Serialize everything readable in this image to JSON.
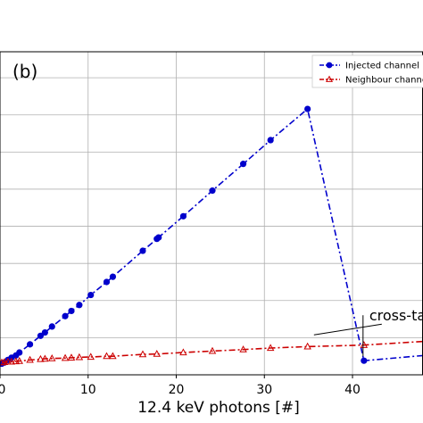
{
  "chart_data": {
    "type": "line",
    "panel_label": "(b)",
    "xlabel": "12.4 keV photons [#]",
    "ylabel": "",
    "xlim": [
      0,
      48
    ],
    "ylim": [
      0,
      8.7
    ],
    "x_ticks": [
      0,
      10,
      20,
      30,
      40
    ],
    "y_grid": [
      1,
      2,
      3,
      4,
      5,
      6,
      7,
      8
    ],
    "grid": true,
    "legend_position": "top-right",
    "series": [
      {
        "name": "Injected channel",
        "color": "#0000cc",
        "marker": "circle",
        "linestyle": "dashdot",
        "points": [
          [
            0.2,
            0.3
          ],
          [
            0.5,
            0.33
          ],
          [
            0.9,
            0.4
          ],
          [
            1.3,
            0.46
          ],
          [
            1.8,
            0.52
          ],
          [
            2.2,
            0.6
          ],
          [
            3.4,
            0.82
          ],
          [
            4.6,
            1.05
          ],
          [
            5.1,
            1.14
          ],
          [
            5.9,
            1.3
          ],
          [
            7.4,
            1.58
          ],
          [
            8.1,
            1.72
          ],
          [
            9.0,
            1.88
          ],
          [
            10.3,
            2.15
          ],
          [
            12.1,
            2.5
          ],
          [
            12.8,
            2.64
          ],
          [
            16.2,
            3.34
          ],
          [
            17.8,
            3.66
          ],
          [
            18.0,
            3.7
          ],
          [
            20.8,
            4.27
          ],
          [
            24.1,
            4.96
          ],
          [
            27.6,
            5.68
          ],
          [
            30.7,
            6.32
          ],
          [
            34.9,
            7.16
          ],
          [
            41.3,
            0.38
          ],
          [
            48,
            0.52
          ]
        ]
      },
      {
        "name": "Neighbour channel",
        "color": "#cc0000",
        "marker": "triangle",
        "linestyle": "dashdot",
        "points": [
          [
            0.2,
            0.33
          ],
          [
            0.5,
            0.34
          ],
          [
            0.9,
            0.35
          ],
          [
            1.3,
            0.35
          ],
          [
            1.8,
            0.36
          ],
          [
            2.2,
            0.37
          ],
          [
            3.4,
            0.4
          ],
          [
            4.6,
            0.42
          ],
          [
            5.1,
            0.43
          ],
          [
            5.9,
            0.44
          ],
          [
            7.4,
            0.45
          ],
          [
            8.1,
            0.46
          ],
          [
            9.0,
            0.47
          ],
          [
            10.3,
            0.48
          ],
          [
            12.1,
            0.5
          ],
          [
            12.8,
            0.5
          ],
          [
            16.2,
            0.55
          ],
          [
            17.8,
            0.56
          ],
          [
            20.8,
            0.6
          ],
          [
            24.1,
            0.64
          ],
          [
            27.6,
            0.68
          ],
          [
            30.7,
            0.72
          ],
          [
            34.9,
            0.76
          ],
          [
            41.3,
            0.8
          ],
          [
            48,
            0.9
          ]
        ]
      }
    ],
    "annotations": [
      {
        "text": "cross-talk",
        "x": 41.5,
        "y": 1.22
      }
    ]
  }
}
